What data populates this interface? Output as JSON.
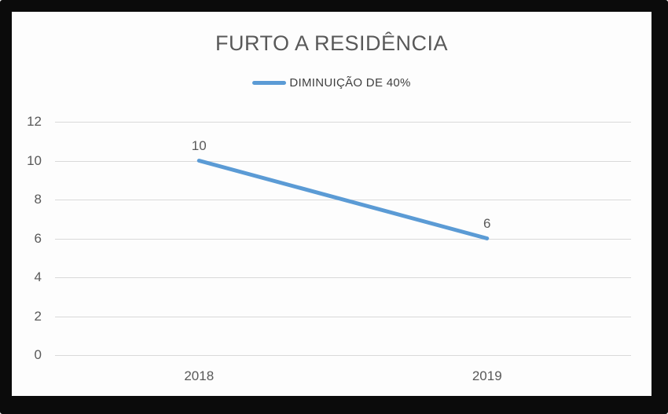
{
  "window": {
    "kind": "framed chart image",
    "frame_color": "#0b0b0b",
    "background_color": "#fdfdfd"
  },
  "chart_data": {
    "type": "line",
    "title": "FURTO A RESIDÊNCIA",
    "legend_entries": [
      "DIMINUIÇÃO DE 40%"
    ],
    "legend_position": "top",
    "categories": [
      "2018",
      "2019"
    ],
    "series": [
      {
        "name": "DIMINUIÇÃO DE 40%",
        "values": [
          10,
          6
        ],
        "color": "#5b9bd5",
        "line_width": 5
      }
    ],
    "data_labels": [
      "10",
      "6"
    ],
    "yticks": [
      "0",
      "2",
      "4",
      "6",
      "8",
      "10",
      "12"
    ],
    "ytick_values": [
      0,
      2,
      4,
      6,
      8,
      10,
      12
    ],
    "ylim": [
      0,
      12
    ],
    "xlabel": "",
    "ylabel": "",
    "grid": "horizontal",
    "gridline_color": "#d9d9d9",
    "text_color": "#595959",
    "legend_text_color": "#404040"
  }
}
